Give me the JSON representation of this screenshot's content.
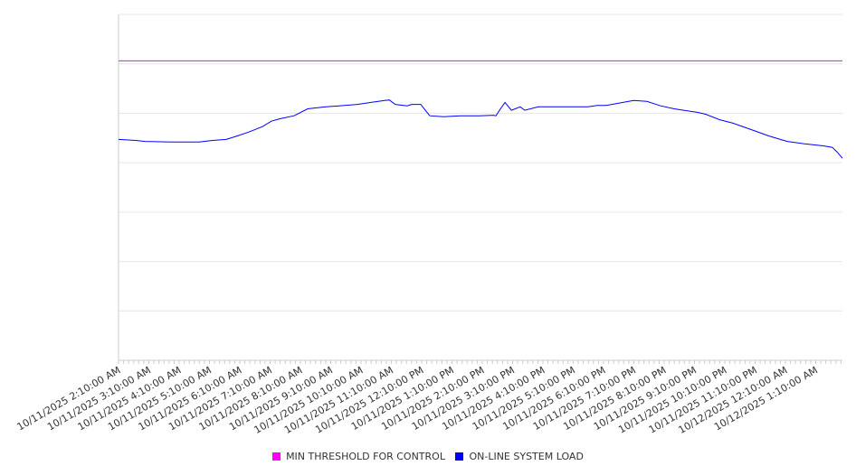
{
  "chart_data": {
    "type": "line",
    "title": "",
    "xlabel": "",
    "ylabel": "",
    "x_unit": "hours after 10/11/2025 2:10:00 AM",
    "xlim": [
      0,
      23.88
    ],
    "ylim": [
      0,
      700
    ],
    "y_grid_step": 100,
    "y_tick_labels_shown": false,
    "grid": true,
    "legend_position": "bottom",
    "x_tick_labels": [
      "10/11/2025 2:10:00 AM",
      "10/11/2025 3:10:00 AM",
      "10/11/2025 4:10:00 AM",
      "10/11/2025 5:10:00 AM",
      "10/11/2025 6:10:00 AM",
      "10/11/2025 7:10:00 AM",
      "10/11/2025 8:10:00 AM",
      "10/11/2025 9:10:00 AM",
      "10/11/2025 10:10:00 AM",
      "10/11/2025 11:10:00 AM",
      "10/11/2025 12:10:00 PM",
      "10/11/2025 1:10:00 PM",
      "10/11/2025 2:10:00 PM",
      "10/11/2025 3:10:00 PM",
      "10/11/2025 4:10:00 PM",
      "10/11/2025 5:10:00 PM",
      "10/11/2025 6:10:00 PM",
      "10/11/2025 7:10:00 PM",
      "10/11/2025 8:10:00 PM",
      "10/11/2025 9:10:00 PM",
      "10/11/2025 10:10:00 PM",
      "10/11/2025 11:10:00 PM",
      "10/12/2025 12:10:00 AM",
      "10/12/2025 1:10:00 AM"
    ],
    "series": [
      {
        "name": "MIN THRESHOLD FOR CONTROL",
        "color": "#ff00ff",
        "x": [
          0,
          23.88
        ],
        "y": [
          606,
          606
        ]
      },
      {
        "name": "ON-LINE SYSTEM LOAD",
        "color": "#0000ff",
        "x": [
          0,
          0.57,
          0.87,
          1.76,
          2.66,
          3.1,
          3.55,
          3.91,
          4.3,
          4.75,
          5.04,
          5.34,
          5.79,
          6.24,
          6.54,
          6.84,
          7.28,
          7.88,
          8.33,
          8.78,
          8.93,
          9.13,
          9.52,
          9.67,
          9.97,
          10.12,
          10.27,
          10.72,
          11.31,
          11.91,
          12.36,
          12.45,
          12.6,
          12.75,
          12.96,
          13.25,
          13.4,
          13.85,
          14.6,
          15.49,
          15.79,
          16.09,
          16.99,
          17.43,
          17.88,
          18.33,
          19.07,
          19.37,
          19.82,
          20.27,
          20.87,
          21.46,
          22.06,
          22.66,
          23.25,
          23.55,
          23.7,
          23.88
        ],
        "y": [
          447,
          445,
          443,
          442,
          442,
          445,
          447,
          454,
          462,
          473,
          484,
          489,
          495,
          509,
          511,
          513,
          515,
          518,
          522,
          526,
          527,
          518,
          515,
          518,
          518,
          506,
          495,
          493,
          495,
          495,
          496,
          495,
          509,
          522,
          506,
          513,
          506,
          513,
          513,
          513,
          516,
          516,
          526,
          524,
          515,
          509,
          502,
          498,
          487,
          480,
          467,
          454,
          443,
          438,
          434,
          431,
          422,
          409
        ]
      }
    ]
  },
  "legend": {
    "items": [
      {
        "label": "MIN THRESHOLD FOR CONTROL",
        "color": "#ff00ff"
      },
      {
        "label": "ON-LINE SYSTEM LOAD",
        "color": "#0000ff"
      }
    ]
  }
}
